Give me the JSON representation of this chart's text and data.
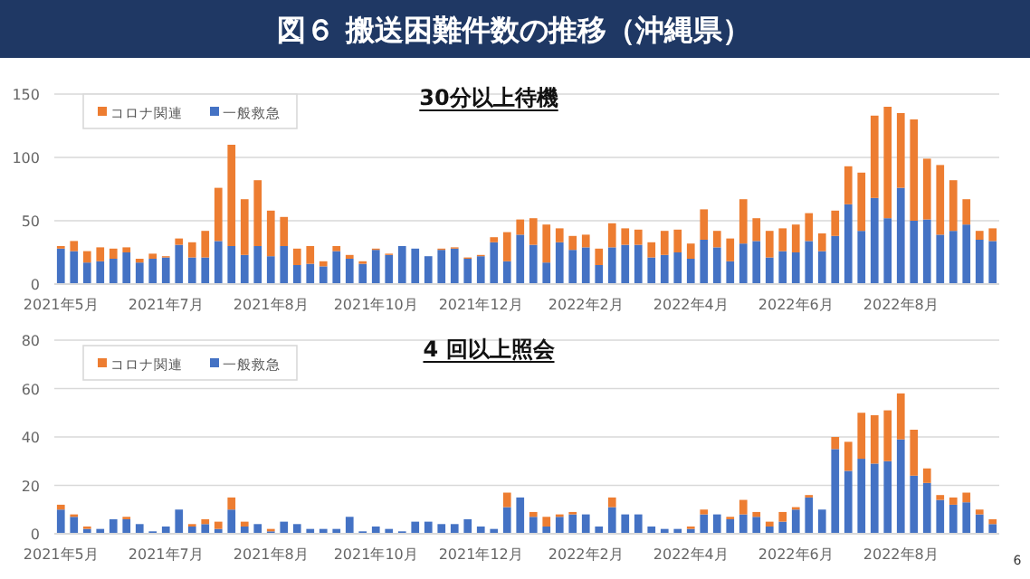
{
  "chart_data": [
    {
      "type": "bar",
      "title": "図６ 搬送困難件数の推移（沖縄県）",
      "subtitle": "30分以上待機",
      "stacked": true,
      "legend": "top left",
      "grid": "y",
      "ylim": [
        0,
        150
      ],
      "yticks": [
        0,
        50,
        100,
        150
      ],
      "categories": [
        "2021年5月",
        null,
        null,
        null,
        null,
        null,
        null,
        null,
        "2021年7月",
        null,
        null,
        null,
        null,
        null,
        null,
        null,
        "2021年8月",
        null,
        null,
        null,
        null,
        null,
        null,
        null,
        "2021年10月",
        null,
        null,
        null,
        null,
        null,
        null,
        null,
        "2021年12月",
        null,
        null,
        null,
        null,
        null,
        null,
        null,
        "2022年2月",
        null,
        null,
        null,
        null,
        null,
        null,
        null,
        "2022年4月",
        null,
        null,
        null,
        null,
        null,
        null,
        null,
        "2022年6月",
        null,
        null,
        null,
        null,
        null,
        null,
        null,
        "2022年8月",
        null,
        null,
        null,
        null,
        null,
        null,
        null
      ],
      "series": [
        {
          "name": "一般救急",
          "color": "#4472c4",
          "values": [
            28,
            26,
            17,
            18,
            20,
            25,
            17,
            20,
            21,
            31,
            21,
            21,
            34,
            30,
            23,
            30,
            22,
            30,
            15,
            16,
            14,
            26,
            20,
            16,
            27,
            23,
            30,
            28,
            22,
            27,
            28,
            20,
            22,
            33,
            18,
            39,
            31,
            17,
            33,
            27,
            29,
            15,
            29,
            31,
            31,
            21,
            23,
            25,
            20,
            35,
            29,
            18,
            32,
            34,
            21,
            26,
            25,
            34,
            26,
            38,
            63,
            42,
            68,
            52,
            76,
            50,
            51,
            39,
            42,
            47,
            35,
            34
          ]
        },
        {
          "name": "コロナ関連",
          "color": "#ed7d31",
          "values": [
            2,
            8,
            9,
            11,
            8,
            4,
            3,
            4,
            1,
            5,
            12,
            21,
            42,
            80,
            44,
            52,
            36,
            23,
            13,
            14,
            4,
            4,
            3,
            2,
            1,
            1,
            0,
            0,
            0,
            1,
            1,
            1,
            1,
            4,
            23,
            12,
            21,
            30,
            11,
            11,
            10,
            13,
            19,
            13,
            12,
            12,
            19,
            18,
            12,
            24,
            13,
            18,
            35,
            18,
            21,
            18,
            22,
            22,
            14,
            20,
            30,
            46,
            65,
            88,
            59,
            80,
            48,
            55,
            40,
            20,
            7,
            10
          ]
        }
      ]
    },
    {
      "type": "bar",
      "title": "4 回以上照会",
      "stacked": true,
      "legend": "top left",
      "grid": "y",
      "ylim": [
        0,
        80
      ],
      "yticks": [
        0,
        20,
        40,
        60,
        80
      ],
      "annotations": [
        "6"
      ],
      "categories": [
        "2021年5月",
        null,
        null,
        null,
        null,
        null,
        null,
        null,
        "2021年7月",
        null,
        null,
        null,
        null,
        null,
        null,
        null,
        "2021年8月",
        null,
        null,
        null,
        null,
        null,
        null,
        null,
        "2021年10月",
        null,
        null,
        null,
        null,
        null,
        null,
        null,
        "2021年12月",
        null,
        null,
        null,
        null,
        null,
        null,
        null,
        "2022年2月",
        null,
        null,
        null,
        null,
        null,
        null,
        null,
        "2022年4月",
        null,
        null,
        null,
        null,
        null,
        null,
        null,
        "2022年6月",
        null,
        null,
        null,
        null,
        null,
        null,
        null,
        "2022年8月",
        null,
        null,
        null,
        null,
        null,
        null,
        null
      ],
      "series": [
        {
          "name": "一般救急",
          "color": "#4472c4",
          "values": [
            10,
            7,
            2,
            2,
            6,
            6,
            4,
            1,
            3,
            10,
            3,
            4,
            2,
            10,
            3,
            4,
            1,
            5,
            4,
            2,
            2,
            2,
            7,
            1,
            3,
            2,
            1,
            5,
            5,
            4,
            4,
            6,
            3,
            2,
            11,
            15,
            7,
            3,
            7,
            8,
            8,
            3,
            11,
            8,
            8,
            3,
            2,
            2,
            2,
            8,
            8,
            6,
            8,
            7,
            3,
            5,
            10,
            15,
            10,
            35,
            26,
            31,
            29,
            30,
            39,
            24,
            21,
            14,
            12,
            13,
            8,
            4
          ]
        },
        {
          "name": "コロナ関連",
          "color": "#ed7d31",
          "values": [
            2,
            1,
            1,
            0,
            0,
            1,
            0,
            0,
            0,
            0,
            1,
            2,
            3,
            5,
            2,
            0,
            1,
            0,
            0,
            0,
            0,
            0,
            0,
            0,
            0,
            0,
            0,
            0,
            0,
            0,
            0,
            0,
            0,
            0,
            6,
            0,
            2,
            4,
            1,
            1,
            0,
            0,
            4,
            0,
            0,
            0,
            0,
            0,
            1,
            2,
            0,
            1,
            6,
            2,
            2,
            4,
            1,
            1,
            0,
            5,
            12,
            19,
            20,
            21,
            19,
            19,
            6,
            2,
            3,
            4,
            2,
            2
          ]
        }
      ]
    }
  ]
}
